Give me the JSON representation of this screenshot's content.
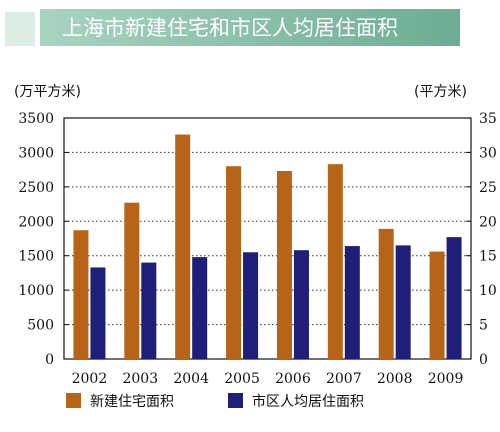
{
  "chart_data": {
    "type": "bar",
    "title": "上海市新建住宅和市区人均居住面积",
    "left_unit_label": "(万平方米)",
    "right_unit_label": "(平方米)",
    "categories": [
      "2002",
      "2003",
      "2004",
      "2005",
      "2006",
      "2007",
      "2008",
      "2009"
    ],
    "left_axis": {
      "min": 0,
      "max": 3500,
      "ticks": [
        "3500",
        "3000",
        "2500",
        "2000",
        "1500",
        "1000",
        "500",
        "0"
      ]
    },
    "right_axis": {
      "min": 0,
      "max": 35,
      "ticks": [
        "35",
        "30",
        "25",
        "20",
        "15",
        "10",
        "5",
        "0"
      ]
    },
    "grid": "dotted horizontal",
    "series": [
      {
        "name": "新建住宅面积",
        "axis": "left",
        "color": "#B86418",
        "values": [
          1870,
          2270,
          3260,
          2800,
          2730,
          2830,
          1890,
          1560
        ]
      },
      {
        "name": "市区人均居住面积",
        "axis": "right",
        "color": "#1F1E78",
        "values": [
          13.3,
          14.0,
          14.8,
          15.5,
          15.8,
          16.4,
          16.5,
          17.7
        ]
      }
    ],
    "colors": {
      "title_bar_start": "#A9D3C2",
      "title_bar_end": "#6CAD94",
      "axis": "#111111",
      "grid": "#333333"
    }
  }
}
